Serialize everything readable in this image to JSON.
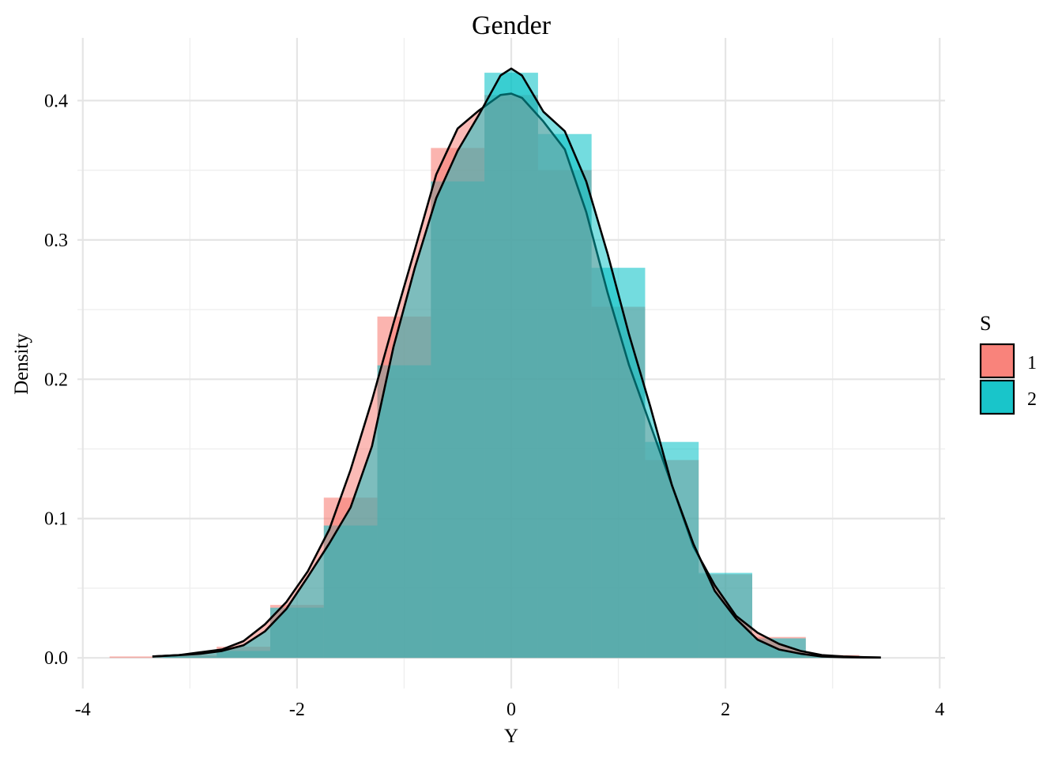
{
  "chart_data": {
    "type": "histogram+density",
    "title": "Gender",
    "xlabel": "Y",
    "ylabel": "Density",
    "xlim": [
      -4.05,
      4.05
    ],
    "ylim": [
      -0.022,
      0.445
    ],
    "x_ticks": [
      -4,
      -2,
      0,
      2,
      4
    ],
    "x_tick_labels": [
      "-4",
      "-2",
      "0",
      "2",
      "4"
    ],
    "y_ticks": [
      0.0,
      0.1,
      0.2,
      0.3,
      0.4
    ],
    "y_tick_labels": [
      "0.0",
      "0.1",
      "0.2",
      "0.3",
      "0.4"
    ],
    "grid": true,
    "legend": {
      "title": "S",
      "position": "right",
      "entries": [
        "1",
        "2"
      ]
    },
    "colors": {
      "1": "#F8766D",
      "2": "#00BFC4",
      "overlap": "#6A9EA0"
    },
    "bin_width": 0.5,
    "bin_left_edges": [
      -3.75,
      -3.25,
      -2.75,
      -2.25,
      -1.75,
      -1.25,
      -0.75,
      -0.25,
      0.25,
      0.75,
      1.25,
      1.75,
      2.25,
      2.75,
      3.25
    ],
    "series": [
      {
        "name": "1",
        "histogram": [
          0.001,
          0.002,
          0.008,
          0.038,
          0.115,
          0.245,
          0.366,
          0.404,
          0.35,
          0.252,
          0.142,
          0.06,
          0.015,
          0.002,
          0.0
        ],
        "density": {
          "x": [
            -3.35,
            -3.1,
            -2.9,
            -2.7,
            -2.5,
            -2.3,
            -2.1,
            -1.9,
            -1.7,
            -1.5,
            -1.3,
            -1.1,
            -0.9,
            -0.7,
            -0.5,
            -0.3,
            -0.1,
            0.0,
            0.1,
            0.3,
            0.5,
            0.7,
            0.9,
            1.1,
            1.3,
            1.5,
            1.7,
            1.9,
            2.1,
            2.3,
            2.5,
            2.7,
            2.9,
            3.1,
            3.3,
            3.45
          ],
          "y": [
            0.001,
            0.002,
            0.004,
            0.006,
            0.012,
            0.024,
            0.04,
            0.062,
            0.092,
            0.135,
            0.185,
            0.24,
            0.293,
            0.347,
            0.38,
            0.393,
            0.404,
            0.405,
            0.402,
            0.385,
            0.365,
            0.32,
            0.262,
            0.21,
            0.167,
            0.124,
            0.08,
            0.052,
            0.03,
            0.018,
            0.01,
            0.005,
            0.002,
            0.001,
            0.0005,
            0.0003
          ]
        }
      },
      {
        "name": "2",
        "histogram": [
          0.0,
          0.001,
          0.005,
          0.036,
          0.095,
          0.21,
          0.342,
          0.42,
          0.376,
          0.28,
          0.155,
          0.061,
          0.014,
          0.001,
          0.0
        ],
        "density": {
          "x": [
            -3.35,
            -3.1,
            -2.9,
            -2.7,
            -2.5,
            -2.3,
            -2.1,
            -1.9,
            -1.7,
            -1.5,
            -1.3,
            -1.1,
            -0.9,
            -0.7,
            -0.5,
            -0.3,
            -0.1,
            0.0,
            0.1,
            0.3,
            0.5,
            0.7,
            0.9,
            1.1,
            1.3,
            1.5,
            1.7,
            1.9,
            2.1,
            2.3,
            2.5,
            2.7,
            2.9,
            3.1,
            3.3,
            3.45
          ],
          "y": [
            0.001,
            0.002,
            0.003,
            0.005,
            0.009,
            0.019,
            0.035,
            0.058,
            0.082,
            0.108,
            0.152,
            0.223,
            0.28,
            0.33,
            0.364,
            0.39,
            0.418,
            0.423,
            0.418,
            0.392,
            0.378,
            0.342,
            0.29,
            0.232,
            0.18,
            0.124,
            0.082,
            0.048,
            0.028,
            0.013,
            0.006,
            0.003,
            0.001,
            0.0005,
            0.0003,
            0.0002
          ]
        }
      }
    ]
  }
}
